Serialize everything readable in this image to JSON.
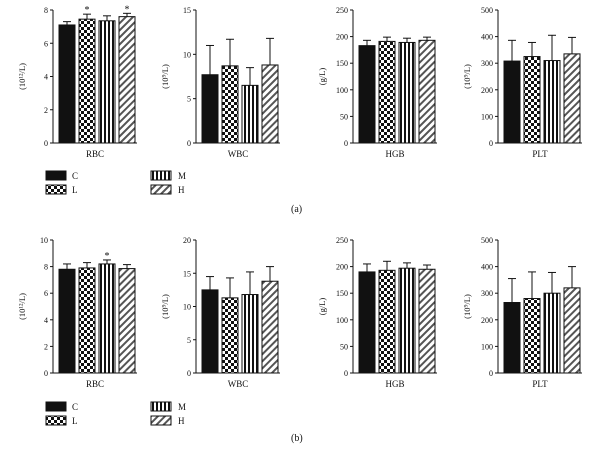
{
  "legend": [
    {
      "key": "C",
      "label": "C",
      "pattern": "solid"
    },
    {
      "key": "L",
      "label": "L",
      "pattern": "checker"
    },
    {
      "key": "M",
      "label": "M",
      "pattern": "vstripes"
    },
    {
      "key": "H",
      "label": "H",
      "pattern": "diag"
    }
  ],
  "panel_labels": [
    "(a)",
    "(b)"
  ],
  "colors": {
    "bar_fill": "#111111",
    "axis": "#111111",
    "background": "#ffffff"
  },
  "chart_data": [
    {
      "panel": "(a)",
      "type": "bar",
      "categories": [
        "C",
        "L",
        "M",
        "H"
      ],
      "xlabel": "RBC",
      "ylabel": "(10¹²/L)",
      "ylim": [
        0,
        8
      ],
      "ticks": [
        0,
        2,
        4,
        6,
        8
      ],
      "values": [
        7.1,
        7.45,
        7.35,
        7.6
      ],
      "errors": [
        0.2,
        0.3,
        0.3,
        0.2
      ],
      "annotations": [
        "",
        "*",
        "",
        "*"
      ]
    },
    {
      "panel": "(a)",
      "type": "bar",
      "categories": [
        "C",
        "L",
        "M",
        "H"
      ],
      "xlabel": "WBC",
      "ylabel": "(10⁹/L)",
      "ylim": [
        0,
        15
      ],
      "ticks": [
        0,
        5,
        10,
        15
      ],
      "values": [
        7.7,
        8.7,
        6.5,
        8.8
      ],
      "errors": [
        3.3,
        3.0,
        2.0,
        3.0
      ],
      "annotations": [
        "",
        "",
        "",
        ""
      ]
    },
    {
      "panel": "(a)",
      "type": "bar",
      "categories": [
        "C",
        "L",
        "M",
        "H"
      ],
      "xlabel": "HGB",
      "ylabel": "(g/L)",
      "ylim": [
        0,
        250
      ],
      "ticks": [
        0,
        50,
        100,
        150,
        200,
        250
      ],
      "values": [
        183,
        191,
        189,
        193
      ],
      "errors": [
        10,
        8,
        8,
        6
      ],
      "annotations": [
        "",
        "",
        "",
        ""
      ]
    },
    {
      "panel": "(a)",
      "type": "bar",
      "categories": [
        "C",
        "L",
        "M",
        "H"
      ],
      "xlabel": "PLT",
      "ylabel": "(10⁹/L)",
      "ylim": [
        0,
        500
      ],
      "ticks": [
        0,
        100,
        200,
        300,
        400,
        500
      ],
      "values": [
        308,
        325,
        310,
        335
      ],
      "errors": [
        78,
        53,
        95,
        62
      ],
      "annotations": [
        "",
        "",
        "",
        ""
      ]
    },
    {
      "panel": "(b)",
      "type": "bar",
      "categories": [
        "C",
        "L",
        "M",
        "H"
      ],
      "xlabel": "RBC",
      "ylabel": "(10¹²/L)",
      "ylim": [
        0,
        10
      ],
      "ticks": [
        0,
        2,
        4,
        6,
        8,
        10
      ],
      "values": [
        7.8,
        7.9,
        8.2,
        7.85
      ],
      "errors": [
        0.4,
        0.4,
        0.3,
        0.3
      ],
      "annotations": [
        "",
        "",
        "*",
        ""
      ]
    },
    {
      "panel": "(b)",
      "type": "bar",
      "categories": [
        "C",
        "L",
        "M",
        "H"
      ],
      "xlabel": "WBC",
      "ylabel": "(10⁹/L)",
      "ylim": [
        0,
        20
      ],
      "ticks": [
        0,
        5,
        10,
        15,
        20
      ],
      "values": [
        12.5,
        11.3,
        11.8,
        13.8
      ],
      "errors": [
        2.0,
        3.0,
        3.4,
        2.2
      ],
      "annotations": [
        "",
        "",
        "",
        ""
      ]
    },
    {
      "panel": "(b)",
      "type": "bar",
      "categories": [
        "C",
        "L",
        "M",
        "H"
      ],
      "xlabel": "HGB",
      "ylabel": "(g/L)",
      "ylim": [
        0,
        250
      ],
      "ticks": [
        0,
        50,
        100,
        150,
        200,
        250
      ],
      "values": [
        190,
        193,
        197,
        195
      ],
      "errors": [
        15,
        17,
        10,
        8
      ],
      "annotations": [
        "",
        "",
        "",
        ""
      ]
    },
    {
      "panel": "(b)",
      "type": "bar",
      "categories": [
        "C",
        "L",
        "M",
        "H"
      ],
      "xlabel": "PLT",
      "ylabel": "(10⁹/L)",
      "ylim": [
        0,
        500
      ],
      "ticks": [
        0,
        100,
        200,
        300,
        400,
        500
      ],
      "values": [
        265,
        280,
        300,
        320
      ],
      "errors": [
        90,
        100,
        78,
        80
      ],
      "annotations": [
        "",
        "",
        "",
        ""
      ]
    }
  ]
}
